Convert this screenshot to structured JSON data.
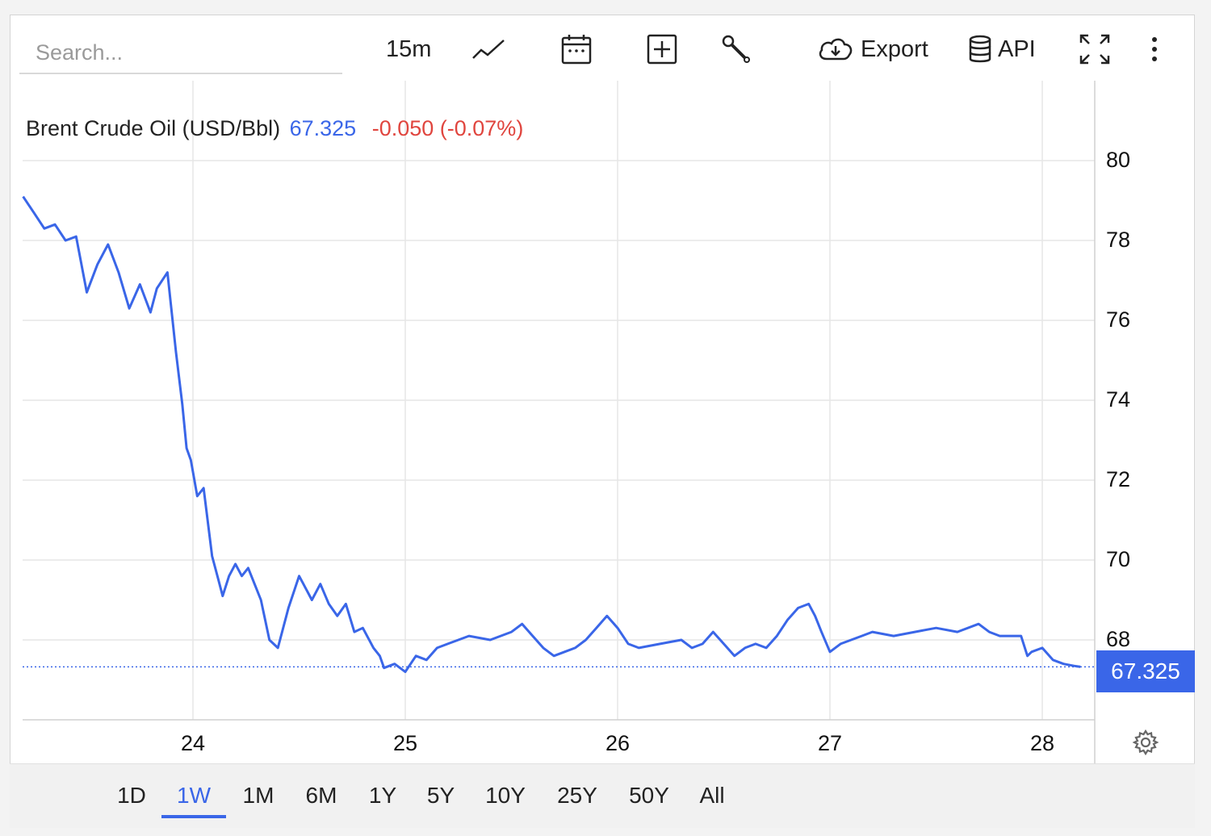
{
  "search": {
    "placeholder": "Search..."
  },
  "toolbar": {
    "interval": "15m",
    "export_label": "Export",
    "api_label": "API"
  },
  "legend": {
    "name": "Brent Crude Oil (USD/Bbl)",
    "price": "67.325",
    "change": "-0.050 (-0.07%)"
  },
  "price_tag": "67.325",
  "periods": [
    {
      "label": "1D",
      "active": false
    },
    {
      "label": "1W",
      "active": true
    },
    {
      "label": "1M",
      "active": false
    },
    {
      "label": "6M",
      "active": false
    },
    {
      "label": "1Y",
      "active": false
    },
    {
      "label": "5Y",
      "active": false
    },
    {
      "label": "10Y",
      "active": false
    },
    {
      "label": "25Y",
      "active": false
    },
    {
      "label": "50Y",
      "active": false
    },
    {
      "label": "All",
      "active": false
    }
  ],
  "colors": {
    "line": "#3a66e8",
    "negative": "#e0453e",
    "grid": "#e6e6e6"
  },
  "icons": [
    "line-chart-icon",
    "calendar-icon",
    "add-indicator-icon",
    "wrench-icon",
    "cloud-download-icon",
    "database-icon",
    "fullscreen-icon",
    "more-vertical-icon",
    "gear-icon"
  ],
  "chart_data": {
    "type": "line",
    "series": [
      {
        "name": "Brent Crude Oil (USD/Bbl)",
        "x": [
          23.2,
          23.25,
          23.3,
          23.35,
          23.4,
          23.45,
          23.5,
          23.55,
          23.6,
          23.65,
          23.7,
          23.75,
          23.8,
          23.83,
          23.88,
          23.92,
          23.95,
          23.97,
          23.99,
          24.02,
          24.05,
          24.09,
          24.12,
          24.14,
          24.17,
          24.2,
          24.23,
          24.26,
          24.29,
          24.32,
          24.36,
          24.4,
          24.45,
          24.5,
          24.52,
          24.56,
          24.6,
          24.64,
          24.68,
          24.72,
          24.76,
          24.8,
          24.85,
          24.88,
          24.9,
          24.95,
          25.0,
          25.05,
          25.1,
          25.15,
          25.2,
          25.3,
          25.4,
          25.5,
          25.55,
          25.6,
          25.65,
          25.7,
          25.75,
          25.8,
          25.85,
          25.9,
          25.95,
          26.0,
          26.05,
          26.1,
          26.2,
          26.3,
          26.35,
          26.4,
          26.45,
          26.5,
          26.55,
          26.6,
          26.65,
          26.7,
          26.75,
          26.8,
          26.85,
          26.9,
          26.93,
          26.96,
          27.0,
          27.05,
          27.1,
          27.15,
          27.2,
          27.3,
          27.4,
          27.5,
          27.6,
          27.7,
          27.75,
          27.8,
          27.9,
          27.93,
          27.95,
          28.0,
          28.05,
          28.1,
          28.15,
          28.18
        ],
        "values": [
          79.1,
          78.7,
          78.3,
          78.4,
          78.0,
          78.1,
          76.7,
          77.4,
          77.9,
          77.2,
          76.3,
          76.9,
          76.2,
          76.8,
          77.2,
          75.2,
          73.9,
          72.8,
          72.5,
          71.6,
          71.8,
          70.1,
          69.5,
          69.1,
          69.6,
          69.9,
          69.6,
          69.8,
          69.4,
          69.0,
          68.0,
          67.8,
          68.8,
          69.6,
          69.4,
          69.0,
          69.4,
          68.9,
          68.6,
          68.9,
          68.2,
          68.3,
          67.8,
          67.6,
          67.3,
          67.4,
          67.2,
          67.6,
          67.5,
          67.8,
          67.9,
          68.1,
          68.0,
          68.2,
          68.4,
          68.1,
          67.8,
          67.6,
          67.7,
          67.8,
          68.0,
          68.3,
          68.6,
          68.3,
          67.9,
          67.8,
          67.9,
          68.0,
          67.8,
          67.9,
          68.2,
          67.9,
          67.6,
          67.8,
          67.9,
          67.8,
          68.1,
          68.5,
          68.8,
          68.9,
          68.6,
          68.2,
          67.7,
          67.9,
          68.0,
          68.1,
          68.2,
          68.1,
          68.2,
          68.3,
          68.2,
          68.4,
          68.2,
          68.1,
          68.1,
          67.6,
          67.7,
          67.8,
          67.5,
          67.4,
          67.35,
          67.325
        ]
      }
    ],
    "ylim": [
      66,
      82
    ],
    "yticks": [
      68,
      70,
      72,
      74,
      76,
      78,
      80
    ],
    "xlim": [
      23.2,
      28.25
    ],
    "xticks": [
      24,
      25,
      26,
      27,
      28
    ],
    "last_value": 67.325,
    "grid": true,
    "title": "",
    "xlabel": "",
    "ylabel": ""
  }
}
